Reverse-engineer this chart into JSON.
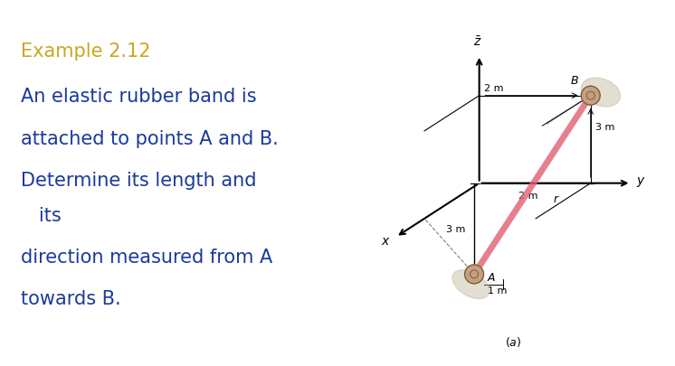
{
  "bg_color": "#ffffff",
  "header_color": "#c8a820",
  "body_color": "#1a3a9c",
  "top_bar_color": "#4a7090",
  "title": "Example 2.12",
  "lines": [
    "An elastic rubber band is",
    "attached to points A and B.",
    "Determine its length and",
    "   its",
    "direction measured from A",
    "towards B."
  ],
  "title_fontsize": 15,
  "body_fontsize": 15,
  "rubber_band_color": "#e06070",
  "node_color": "#c4a080"
}
